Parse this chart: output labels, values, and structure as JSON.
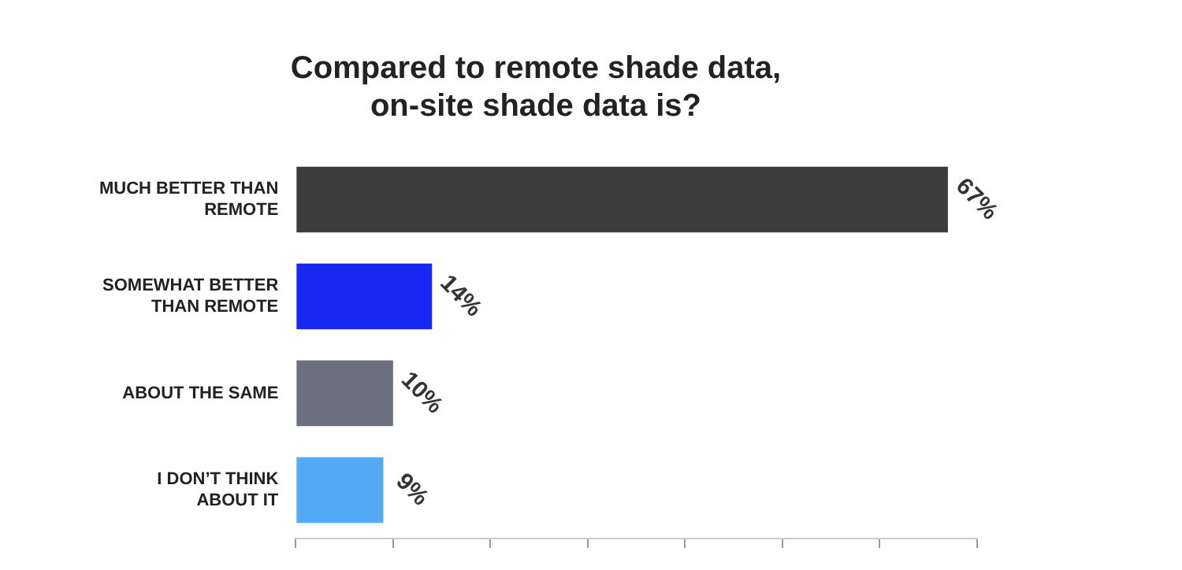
{
  "chart_data": {
    "type": "bar",
    "orientation": "horizontal",
    "title": "Compared to remote shade data, on-site shade data is?",
    "categories": [
      "MUCH BETTER THAN REMOTE",
      "SOMEWHAT BETTER THAN REMOTE",
      "ABOUT THE SAME",
      "I DON’T THINK ABOUT IT"
    ],
    "values": [
      67,
      14,
      10,
      9
    ],
    "colors": [
      "#3d3d3d",
      "#1628f2",
      "#6c6f80",
      "#55aaf6"
    ],
    "value_labels": [
      "67%",
      "14%",
      "10%",
      "9%"
    ],
    "xlim": [
      0,
      70
    ],
    "xticks": [
      {
        "value": 0,
        "label": null
      },
      {
        "value": 10,
        "label": null
      },
      {
        "value": 20,
        "label": null
      },
      {
        "value": 30,
        "label": null
      },
      {
        "value": 40,
        "label": null
      },
      {
        "value": 50,
        "label": null
      },
      {
        "value": 60,
        "label": null
      },
      {
        "value": 70,
        "label": null
      }
    ],
    "tick_labels": "y",
    "grid": false,
    "legend": false
  }
}
